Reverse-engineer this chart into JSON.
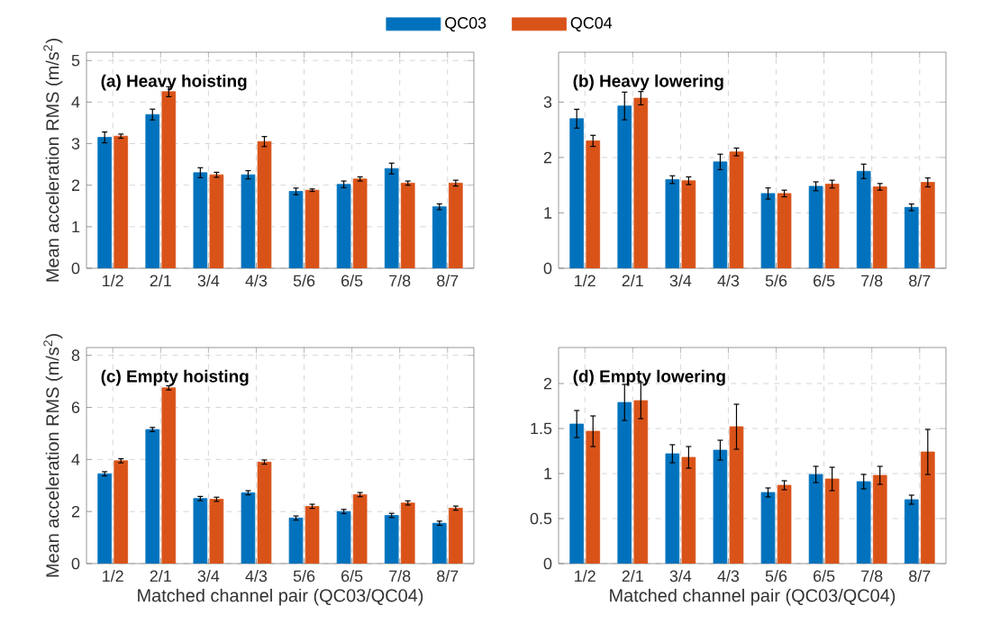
{
  "chart_data": [
    {
      "type": "bar",
      "title": "(a) Heavy hoisting",
      "ylabel": "Mean acceleration RMS (m/s$^{2}$)",
      "categories": [
        "1/2",
        "2/1",
        "3/4",
        "4/3",
        "5/6",
        "6/5",
        "7/8",
        "8/7"
      ],
      "ylim": [
        0,
        5.2
      ],
      "yticks": [
        0,
        1,
        2,
        3,
        4,
        5
      ],
      "grid": true,
      "legend": "top",
      "series": [
        {
          "name": "QC03",
          "color": "#0072bd",
          "values": [
            3.15,
            3.7,
            2.3,
            2.25,
            1.85,
            2.02,
            2.4,
            1.48
          ],
          "errors": [
            0.13,
            0.13,
            0.12,
            0.1,
            0.08,
            0.08,
            0.13,
            0.07
          ]
        },
        {
          "name": "QC04",
          "color": "#d95319",
          "values": [
            3.18,
            4.25,
            2.25,
            3.05,
            1.88,
            2.15,
            2.05,
            2.05
          ],
          "errors": [
            0.05,
            0.12,
            0.06,
            0.12,
            0.03,
            0.05,
            0.05,
            0.07
          ]
        }
      ]
    },
    {
      "type": "bar",
      "title": "(b) Heavy lowering",
      "categories": [
        "1/2",
        "2/1",
        "3/4",
        "4/3",
        "5/6",
        "6/5",
        "7/8",
        "8/7"
      ],
      "ylim": [
        0,
        3.9
      ],
      "yticks": [
        0,
        1,
        2,
        3
      ],
      "grid": true,
      "series": [
        {
          "color": "#0072bd",
          "values": [
            2.7,
            2.93,
            1.6,
            1.92,
            1.35,
            1.48,
            1.75,
            1.1
          ],
          "errors": [
            0.17,
            0.25,
            0.07,
            0.14,
            0.1,
            0.08,
            0.13,
            0.06
          ]
        },
        {
          "color": "#d95319",
          "values": [
            2.3,
            3.07,
            1.58,
            2.1,
            1.35,
            1.52,
            1.47,
            1.55
          ],
          "errors": [
            0.1,
            0.12,
            0.07,
            0.07,
            0.06,
            0.07,
            0.06,
            0.08
          ]
        }
      ]
    },
    {
      "type": "bar",
      "title": "(c) Empty hoisting",
      "ylabel": "Mean acceleration RMS (m/s$^{2}$)",
      "xlabel": "Matched channel pair (QC03/QC04)",
      "categories": [
        "1/2",
        "2/1",
        "3/4",
        "4/3",
        "5/6",
        "6/5",
        "7/8",
        "8/7"
      ],
      "ylim": [
        0,
        8.3
      ],
      "yticks": [
        0,
        2,
        4,
        6,
        8
      ],
      "grid": true,
      "series": [
        {
          "color": "#0072bd",
          "values": [
            3.45,
            5.15,
            2.5,
            2.72,
            1.75,
            2.0,
            1.85,
            1.55
          ],
          "errors": [
            0.08,
            0.08,
            0.08,
            0.08,
            0.08,
            0.08,
            0.08,
            0.08
          ]
        },
        {
          "color": "#d95319",
          "values": [
            3.95,
            6.75,
            2.47,
            3.9,
            2.2,
            2.65,
            2.33,
            2.13
          ],
          "errors": [
            0.08,
            0.08,
            0.08,
            0.08,
            0.08,
            0.08,
            0.08,
            0.08
          ]
        }
      ]
    },
    {
      "type": "bar",
      "title": "(d) Empty lowering",
      "xlabel": "Matched channel pair (QC03/QC04)",
      "categories": [
        "1/2",
        "2/1",
        "3/4",
        "4/3",
        "5/6",
        "6/5",
        "7/8",
        "8/7"
      ],
      "ylim": [
        0,
        2.4
      ],
      "yticks": [
        0,
        0.5,
        1,
        1.5,
        2
      ],
      "grid": true,
      "series": [
        {
          "color": "#0072bd",
          "values": [
            1.55,
            1.79,
            1.22,
            1.26,
            0.79,
            0.99,
            0.91,
            0.71
          ],
          "errors": [
            0.15,
            0.2,
            0.1,
            0.11,
            0.05,
            0.09,
            0.08,
            0.05
          ]
        },
        {
          "color": "#d95319",
          "values": [
            1.47,
            1.81,
            1.18,
            1.52,
            0.87,
            0.94,
            0.98,
            1.24
          ],
          "errors": [
            0.17,
            0.2,
            0.12,
            0.25,
            0.05,
            0.13,
            0.1,
            0.25
          ]
        }
      ]
    }
  ]
}
